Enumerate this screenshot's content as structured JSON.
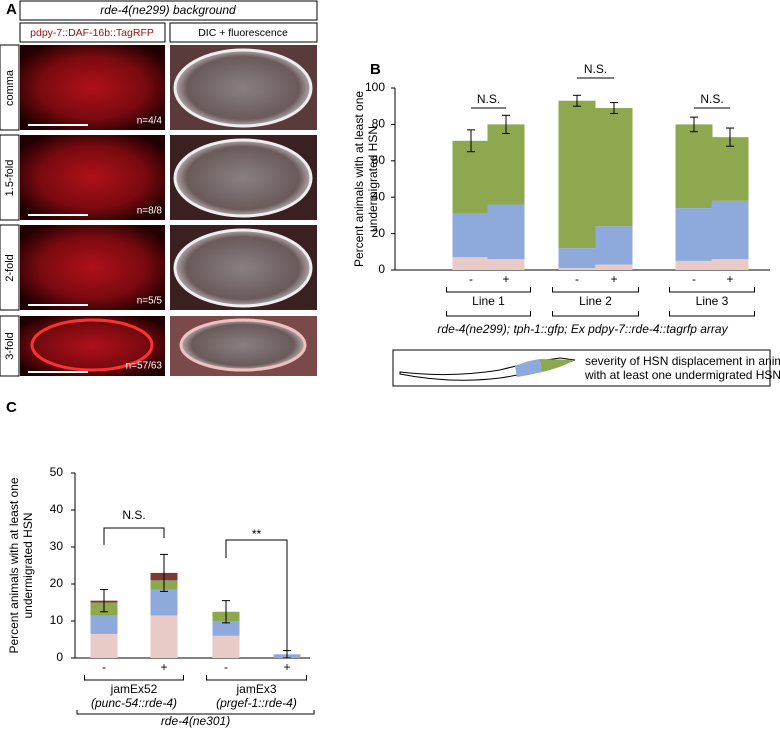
{
  "panel_a": {
    "letter": "A",
    "header": "rde-4(ne299) background",
    "columns": [
      "pdpy-7::DAF-16b::TagRFP",
      "DIC + fluorescence"
    ],
    "rows": [
      {
        "stage": "comma",
        "count": "n=4/4"
      },
      {
        "stage": "1.5-fold",
        "count": "n=8/8"
      },
      {
        "stage": "2-fold",
        "count": "n=5/5"
      },
      {
        "stage": "3-fold",
        "count": "n=57/63"
      }
    ]
  },
  "chart_data": [
    {
      "type": "bar",
      "stacked": true,
      "letter": "B",
      "ylabel": [
        "Percent animals with at least one",
        "undermigrated HSN"
      ],
      "xlabel": "rde-4(ne299); tph-1::gfp; Ex pdpy-7::rde-4::tagrfp array",
      "categories": [
        "-",
        "+",
        "-",
        "+",
        "-",
        "+"
      ],
      "groups": [
        "Line 1",
        "Line 2",
        "Line 3"
      ],
      "series": [
        {
          "color": "#e8cac7",
          "values": [
            7,
            6,
            1,
            3,
            5,
            6
          ]
        },
        {
          "color": "#8eaadc",
          "values": [
            24,
            30,
            11,
            21,
            29,
            32
          ]
        },
        {
          "color": "#8ea84f",
          "values": [
            40,
            44,
            81,
            65,
            46,
            35
          ]
        }
      ],
      "errors": [
        6,
        5,
        3,
        3,
        4,
        5
      ],
      "ylim": [
        0,
        100
      ],
      "yticks": [
        0,
        20,
        40,
        60,
        80,
        100
      ],
      "annotations": [
        "N.S.",
        "N.S.",
        "N.S."
      ],
      "legend_text": [
        "severity of HSN displacement in animals",
        "with at least one undermigrated HSN"
      ]
    },
    {
      "type": "bar",
      "stacked": true,
      "letter": "C",
      "ylabel": [
        "Percent animals with at least one",
        "undermigrated HSN"
      ],
      "xlabel": "rde-4(ne301)",
      "categories": [
        "-",
        "+",
        "-",
        "+"
      ],
      "groups": [
        {
          "name": "jamEx52",
          "construct": "(punc-54::rde-4)"
        },
        {
          "name": "jamEx3",
          "construct": "(prgef-1::rde-4)"
        }
      ],
      "series": [
        {
          "color": "#e8cac7",
          "values": [
            6.5,
            11.5,
            6,
            0
          ]
        },
        {
          "color": "#8eaadc",
          "values": [
            5,
            7,
            4,
            1
          ]
        },
        {
          "color": "#8ea84f",
          "values": [
            3.5,
            2.5,
            2.5,
            0
          ]
        },
        {
          "color": "#7b3a3a",
          "values": [
            0.5,
            2,
            0,
            0
          ]
        }
      ],
      "errors": [
        3,
        5,
        3,
        1
      ],
      "ylim": [
        0,
        50
      ],
      "yticks": [
        0,
        10,
        20,
        30,
        40,
        50
      ],
      "annotations": [
        "N.S.",
        "**"
      ]
    }
  ]
}
